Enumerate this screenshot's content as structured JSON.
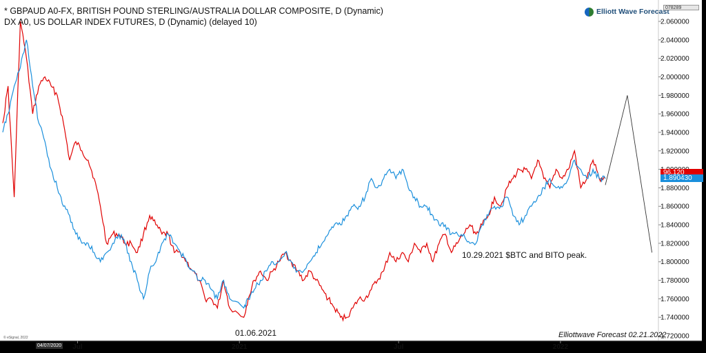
{
  "header": {
    "line1": "* GBPAUD A0-FX, BRITISH POUND STERLING/AUSTRALIA DOLLAR COMPOSITE, D (Dynamic)",
    "line2": "DX A0, US DOLLAR INDEX FUTURES, D (Dynamic) (delayed 10)"
  },
  "logo": {
    "text": "Elliott Wave Forecast"
  },
  "top_value_box": "078289",
  "price_tags": {
    "red": "96.120",
    "blue": "1.890430"
  },
  "annotations": {
    "date_label": "01.06.2021",
    "btc_label": "10.29.2021 $BTC and BITO peak."
  },
  "footer": "Elliottwave Forecast  02.21.2022",
  "esignal": "© eSignal, 2022",
  "x_start_label": "04/07/2020",
  "colors": {
    "gbpaud": "#e00000",
    "dx": "#1a8fdc",
    "projection": "#333333",
    "background": "#ffffff"
  },
  "chart_data": {
    "type": "line",
    "y_ticks": [
      "2.060000",
      "2.040000",
      "2.020000",
      "2.000000",
      "1.980000",
      "1.960000",
      "1.940000",
      "1.920000",
      "1.900000",
      "1.880000",
      "1.860000",
      "1.840000",
      "1.820000",
      "1.800000",
      "1.780000",
      "1.760000",
      "1.740000",
      "1.720000"
    ],
    "ylim": [
      1.72,
      2.07
    ],
    "x_tick_labels": [
      "Jul",
      "2021",
      "Jul",
      "2022"
    ],
    "x_range": [
      "2020-04-07",
      "2022-04-20"
    ],
    "series": [
      {
        "name": "GBPAUD A0-FX",
        "color": "#e00000",
        "x": [
          "2020-04-07",
          "2020-04-13",
          "2020-04-20",
          "2020-04-27",
          "2020-05-04",
          "2020-05-11",
          "2020-05-18",
          "2020-05-25",
          "2020-06-01",
          "2020-06-08",
          "2020-06-15",
          "2020-06-22",
          "2020-06-29",
          "2020-07-06",
          "2020-07-13",
          "2020-07-20",
          "2020-07-27",
          "2020-08-03",
          "2020-08-10",
          "2020-08-17",
          "2020-08-24",
          "2020-08-31",
          "2020-09-07",
          "2020-09-14",
          "2020-09-21",
          "2020-09-28",
          "2020-10-05",
          "2020-10-12",
          "2020-10-19",
          "2020-10-26",
          "2020-11-02",
          "2020-11-09",
          "2020-11-16",
          "2020-11-23",
          "2020-11-30",
          "2020-12-07",
          "2020-12-14",
          "2020-12-21",
          "2021-01-06",
          "2021-01-11",
          "2021-01-18",
          "2021-01-25",
          "2021-02-01",
          "2021-02-08",
          "2021-02-15",
          "2021-02-22",
          "2021-03-01",
          "2021-03-08",
          "2021-03-15",
          "2021-03-22",
          "2021-03-29",
          "2021-04-05",
          "2021-04-12",
          "2021-04-19",
          "2021-04-26",
          "2021-05-03",
          "2021-05-10",
          "2021-05-17",
          "2021-05-24",
          "2021-05-31",
          "2021-06-07",
          "2021-06-14",
          "2021-06-21",
          "2021-06-28",
          "2021-07-05",
          "2021-07-12",
          "2021-07-19",
          "2021-07-26",
          "2021-08-02",
          "2021-08-09",
          "2021-08-16",
          "2021-08-23",
          "2021-08-30",
          "2021-09-06",
          "2021-09-13",
          "2021-09-20",
          "2021-09-27",
          "2021-10-04",
          "2021-10-11",
          "2021-10-18",
          "2021-10-25",
          "2021-11-01",
          "2021-11-08",
          "2021-11-15",
          "2021-11-22",
          "2021-11-29",
          "2021-12-06",
          "2021-12-13",
          "2021-12-20",
          "2021-12-27",
          "2022-01-03",
          "2022-01-10",
          "2022-01-17",
          "2022-01-24",
          "2022-01-31",
          "2022-02-07",
          "2022-02-14",
          "2022-02-21"
        ],
        "values": [
          1.95,
          1.99,
          1.87,
          2.06,
          2.02,
          1.96,
          1.99,
          2.0,
          1.99,
          1.98,
          1.95,
          1.91,
          1.93,
          1.92,
          1.91,
          1.89,
          1.86,
          1.82,
          1.83,
          1.83,
          1.82,
          1.82,
          1.81,
          1.83,
          1.85,
          1.84,
          1.83,
          1.83,
          1.81,
          1.81,
          1.8,
          1.79,
          1.78,
          1.76,
          1.76,
          1.75,
          1.78,
          1.75,
          1.74,
          1.76,
          1.78,
          1.79,
          1.78,
          1.79,
          1.8,
          1.81,
          1.8,
          1.79,
          1.78,
          1.79,
          1.78,
          1.77,
          1.76,
          1.75,
          1.74,
          1.74,
          1.75,
          1.76,
          1.76,
          1.77,
          1.78,
          1.79,
          1.81,
          1.8,
          1.81,
          1.8,
          1.82,
          1.81,
          1.82,
          1.8,
          1.82,
          1.83,
          1.81,
          1.82,
          1.83,
          1.84,
          1.83,
          1.84,
          1.85,
          1.87,
          1.86,
          1.88,
          1.89,
          1.9,
          1.9,
          1.89,
          1.91,
          1.89,
          1.88,
          1.9,
          1.89,
          1.9,
          1.92,
          1.88,
          1.89,
          1.91,
          1.89,
          1.89
        ]
      },
      {
        "name": "DX A0 US DOLLAR INDEX FUTURES",
        "color": "#1a8fdc",
        "x": [
          "2020-04-07",
          "2020-04-13",
          "2020-04-20",
          "2020-04-27",
          "2020-05-04",
          "2020-05-11",
          "2020-05-18",
          "2020-05-25",
          "2020-06-01",
          "2020-06-08",
          "2020-06-15",
          "2020-06-22",
          "2020-06-29",
          "2020-07-06",
          "2020-07-13",
          "2020-07-20",
          "2020-07-27",
          "2020-08-03",
          "2020-08-10",
          "2020-08-17",
          "2020-08-24",
          "2020-08-31",
          "2020-09-07",
          "2020-09-14",
          "2020-09-21",
          "2020-09-28",
          "2020-10-05",
          "2020-10-12",
          "2020-10-19",
          "2020-10-26",
          "2020-11-02",
          "2020-11-09",
          "2020-11-16",
          "2020-11-23",
          "2020-11-30",
          "2020-12-07",
          "2020-12-14",
          "2020-12-21",
          "2021-01-06",
          "2021-01-11",
          "2021-01-18",
          "2021-01-25",
          "2021-02-01",
          "2021-02-08",
          "2021-02-15",
          "2021-02-22",
          "2021-03-01",
          "2021-03-08",
          "2021-03-15",
          "2021-03-22",
          "2021-03-29",
          "2021-04-05",
          "2021-04-12",
          "2021-04-19",
          "2021-04-26",
          "2021-05-03",
          "2021-05-10",
          "2021-05-17",
          "2021-05-24",
          "2021-05-31",
          "2021-06-07",
          "2021-06-14",
          "2021-06-21",
          "2021-06-28",
          "2021-07-05",
          "2021-07-12",
          "2021-07-19",
          "2021-07-26",
          "2021-08-02",
          "2021-08-09",
          "2021-08-16",
          "2021-08-23",
          "2021-08-30",
          "2021-09-06",
          "2021-09-13",
          "2021-09-20",
          "2021-09-27",
          "2021-10-04",
          "2021-10-11",
          "2021-10-18",
          "2021-10-25",
          "2021-11-01",
          "2021-11-08",
          "2021-11-15",
          "2021-11-22",
          "2021-11-29",
          "2021-12-06",
          "2021-12-13",
          "2021-12-20",
          "2021-12-27",
          "2022-01-03",
          "2022-01-10",
          "2022-01-17",
          "2022-01-24",
          "2022-01-31",
          "2022-02-07",
          "2022-02-14",
          "2022-02-21"
        ],
        "values": [
          1.94,
          1.96,
          1.99,
          2.01,
          2.04,
          1.99,
          1.95,
          1.93,
          1.9,
          1.88,
          1.86,
          1.85,
          1.83,
          1.82,
          1.82,
          1.81,
          1.8,
          1.81,
          1.82,
          1.83,
          1.82,
          1.8,
          1.78,
          1.76,
          1.79,
          1.8,
          1.82,
          1.83,
          1.82,
          1.81,
          1.8,
          1.79,
          1.78,
          1.78,
          1.77,
          1.76,
          1.78,
          1.76,
          1.75,
          1.76,
          1.77,
          1.78,
          1.79,
          1.8,
          1.8,
          1.81,
          1.8,
          1.79,
          1.79,
          1.8,
          1.81,
          1.82,
          1.83,
          1.84,
          1.84,
          1.85,
          1.86,
          1.86,
          1.87,
          1.89,
          1.88,
          1.89,
          1.9,
          1.89,
          1.9,
          1.88,
          1.87,
          1.86,
          1.86,
          1.85,
          1.84,
          1.84,
          1.83,
          1.83,
          1.83,
          1.82,
          1.82,
          1.84,
          1.85,
          1.86,
          1.86,
          1.87,
          1.85,
          1.84,
          1.85,
          1.86,
          1.87,
          1.88,
          1.89,
          1.88,
          1.88,
          1.89,
          1.91,
          1.9,
          1.89,
          1.9,
          1.89,
          1.89
        ]
      }
    ],
    "projection": {
      "x": [
        "2022-02-21",
        "2022-03-18",
        "2022-04-15"
      ],
      "values": [
        1.883,
        1.98,
        1.81
      ]
    }
  }
}
